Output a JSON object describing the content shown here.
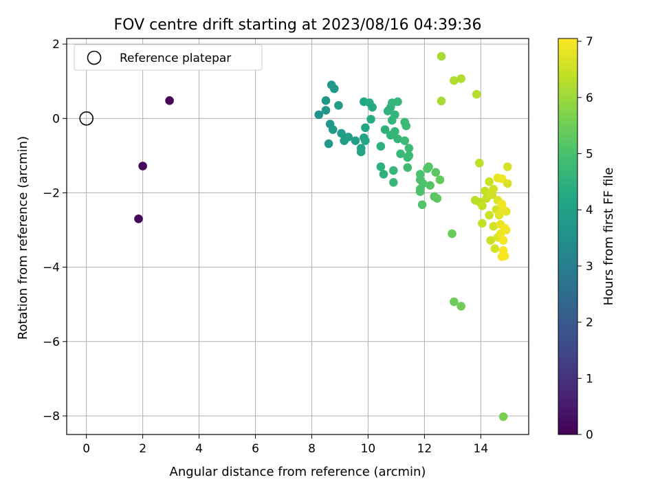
{
  "chart_data": {
    "type": "scatter",
    "title": "FOV centre drift starting at 2023/08/16 04:39:36",
    "xlabel": "Angular distance from reference (arcmin)",
    "ylabel": "Rotation from reference (arcmin)",
    "xlim": [
      -0.7,
      15.7
    ],
    "ylim": [
      -8.5,
      2.15
    ],
    "xticks": [
      0,
      2,
      4,
      6,
      8,
      10,
      12,
      14
    ],
    "yticks": [
      2,
      0,
      -2,
      -4,
      -6,
      -8
    ],
    "grid": true,
    "colormap": "viridis",
    "colorbar": {
      "label": "Hours from first FF file",
      "range": [
        0,
        7.05
      ],
      "ticks": [
        0,
        1,
        2,
        3,
        4,
        5,
        6,
        7
      ]
    },
    "legend": {
      "position": "top-left",
      "entries": [
        "Reference platepar"
      ]
    },
    "reference_point": {
      "x": 0,
      "y": 0,
      "label": "Reference platepar"
    },
    "points": [
      {
        "x": 2.95,
        "y": 0.48,
        "h": 0.1
      },
      {
        "x": 2.0,
        "y": -1.28,
        "h": 0.15
      },
      {
        "x": 1.85,
        "y": -2.7,
        "h": 0.12
      },
      {
        "x": 8.25,
        "y": 0.1,
        "h": 3.6
      },
      {
        "x": 8.5,
        "y": 0.48,
        "h": 3.7
      },
      {
        "x": 8.5,
        "y": 0.22,
        "h": 3.7
      },
      {
        "x": 8.6,
        "y": -0.68,
        "h": 3.75
      },
      {
        "x": 8.65,
        "y": -0.15,
        "h": 3.75
      },
      {
        "x": 8.75,
        "y": -0.3,
        "h": 3.8
      },
      {
        "x": 8.7,
        "y": 0.9,
        "h": 3.8
      },
      {
        "x": 8.8,
        "y": 0.8,
        "h": 3.8
      },
      {
        "x": 8.95,
        "y": 0.35,
        "h": 3.85
      },
      {
        "x": 9.05,
        "y": -0.4,
        "h": 3.9
      },
      {
        "x": 9.15,
        "y": -0.6,
        "h": 3.9
      },
      {
        "x": 9.3,
        "y": -0.5,
        "h": 3.95
      },
      {
        "x": 9.55,
        "y": -0.6,
        "h": 4.0
      },
      {
        "x": 9.75,
        "y": -0.8,
        "h": 4.1
      },
      {
        "x": 9.75,
        "y": -0.9,
        "h": 4.1
      },
      {
        "x": 9.85,
        "y": -0.52,
        "h": 4.15
      },
      {
        "x": 9.9,
        "y": -0.6,
        "h": 4.15
      },
      {
        "x": 9.85,
        "y": 0.45,
        "h": 4.2
      },
      {
        "x": 9.9,
        "y": -0.25,
        "h": 4.2
      },
      {
        "x": 10.05,
        "y": 0.42,
        "h": 4.3
      },
      {
        "x": 10.15,
        "y": 0.3,
        "h": 4.3
      },
      {
        "x": 10.1,
        "y": -0.02,
        "h": 4.35
      },
      {
        "x": 10.45,
        "y": -0.75,
        "h": 4.45
      },
      {
        "x": 10.45,
        "y": -1.3,
        "h": 4.5
      },
      {
        "x": 10.55,
        "y": -1.5,
        "h": 4.5
      },
      {
        "x": 10.6,
        "y": -0.3,
        "h": 4.5
      },
      {
        "x": 10.7,
        "y": 0.2,
        "h": 4.55
      },
      {
        "x": 10.8,
        "y": 0.3,
        "h": 4.55
      },
      {
        "x": 10.85,
        "y": 0.42,
        "h": 4.6
      },
      {
        "x": 10.85,
        "y": -0.05,
        "h": 4.6
      },
      {
        "x": 10.95,
        "y": 0.1,
        "h": 4.6
      },
      {
        "x": 10.8,
        "y": -0.45,
        "h": 4.6
      },
      {
        "x": 10.95,
        "y": -0.35,
        "h": 4.65
      },
      {
        "x": 11.05,
        "y": -0.55,
        "h": 4.65
      },
      {
        "x": 11.05,
        "y": 0.45,
        "h": 4.65
      },
      {
        "x": 10.9,
        "y": -1.4,
        "h": 4.65
      },
      {
        "x": 10.9,
        "y": -1.72,
        "h": 4.7
      },
      {
        "x": 11.15,
        "y": -0.95,
        "h": 4.7
      },
      {
        "x": 11.3,
        "y": -0.1,
        "h": 4.75
      },
      {
        "x": 11.35,
        "y": -0.2,
        "h": 4.75
      },
      {
        "x": 11.3,
        "y": -0.6,
        "h": 4.75
      },
      {
        "x": 11.45,
        "y": -0.8,
        "h": 4.8
      },
      {
        "x": 11.4,
        "y": -1.05,
        "h": 4.8
      },
      {
        "x": 11.45,
        "y": -1.0,
        "h": 4.8
      },
      {
        "x": 11.4,
        "y": -1.32,
        "h": 4.85
      },
      {
        "x": 11.85,
        "y": -1.5,
        "h": 5.0
      },
      {
        "x": 11.85,
        "y": -1.65,
        "h": 5.0
      },
      {
        "x": 11.85,
        "y": -1.9,
        "h": 5.05
      },
      {
        "x": 11.85,
        "y": -1.97,
        "h": 5.05
      },
      {
        "x": 11.95,
        "y": -1.75,
        "h": 5.05
      },
      {
        "x": 11.92,
        "y": -2.32,
        "h": 5.1
      },
      {
        "x": 12.1,
        "y": -1.35,
        "h": 5.1
      },
      {
        "x": 12.15,
        "y": -1.3,
        "h": 5.15
      },
      {
        "x": 12.2,
        "y": -1.8,
        "h": 5.15
      },
      {
        "x": 12.35,
        "y": -2.1,
        "h": 5.2
      },
      {
        "x": 12.4,
        "y": -1.45,
        "h": 5.25
      },
      {
        "x": 12.45,
        "y": -2.15,
        "h": 5.25
      },
      {
        "x": 12.55,
        "y": -1.65,
        "h": 5.35
      },
      {
        "x": 12.98,
        "y": -3.1,
        "h": 5.4
      },
      {
        "x": 13.05,
        "y": -4.93,
        "h": 5.45
      },
      {
        "x": 13.3,
        "y": -5.05,
        "h": 5.5
      },
      {
        "x": 14.8,
        "y": -8.02,
        "h": 5.6
      },
      {
        "x": 12.6,
        "y": 1.67,
        "h": 6.1
      },
      {
        "x": 12.6,
        "y": 0.47,
        "h": 6.1
      },
      {
        "x": 13.05,
        "y": 1.02,
        "h": 6.2
      },
      {
        "x": 13.3,
        "y": 1.07,
        "h": 6.2
      },
      {
        "x": 13.85,
        "y": 0.65,
        "h": 6.25
      },
      {
        "x": 13.8,
        "y": -2.2,
        "h": 6.3
      },
      {
        "x": 13.95,
        "y": -1.2,
        "h": 6.35
      },
      {
        "x": 13.95,
        "y": -2.25,
        "h": 6.35
      },
      {
        "x": 14.05,
        "y": -2.35,
        "h": 6.4
      },
      {
        "x": 14.05,
        "y": -2.82,
        "h": 6.4
      },
      {
        "x": 14.15,
        "y": -1.95,
        "h": 6.45
      },
      {
        "x": 14.2,
        "y": -2.15,
        "h": 6.45
      },
      {
        "x": 14.3,
        "y": -1.7,
        "h": 6.5
      },
      {
        "x": 14.3,
        "y": -2.6,
        "h": 6.5
      },
      {
        "x": 14.35,
        "y": -3.28,
        "h": 6.5
      },
      {
        "x": 14.4,
        "y": -2.05,
        "h": 6.55
      },
      {
        "x": 14.45,
        "y": -1.9,
        "h": 6.55
      },
      {
        "x": 14.45,
        "y": -2.9,
        "h": 6.55
      },
      {
        "x": 14.5,
        "y": -3.5,
        "h": 6.6
      },
      {
        "x": 14.55,
        "y": -2.45,
        "h": 6.6
      },
      {
        "x": 14.6,
        "y": -2.2,
        "h": 6.7
      },
      {
        "x": 14.6,
        "y": -3.2,
        "h": 6.7
      },
      {
        "x": 14.65,
        "y": -2.6,
        "h": 6.75
      },
      {
        "x": 14.6,
        "y": -1.6,
        "h": 6.8
      },
      {
        "x": 14.7,
        "y": -2.85,
        "h": 6.85
      },
      {
        "x": 14.7,
        "y": -3.1,
        "h": 6.85
      },
      {
        "x": 14.75,
        "y": -2.3,
        "h": 6.9
      },
      {
        "x": 14.75,
        "y": -1.62,
        "h": 6.9
      },
      {
        "x": 14.8,
        "y": -2.45,
        "h": 6.9
      },
      {
        "x": 14.8,
        "y": -3.28,
        "h": 6.95
      },
      {
        "x": 14.85,
        "y": -2.95,
        "h": 6.95
      },
      {
        "x": 14.8,
        "y": -3.55,
        "h": 7.0
      },
      {
        "x": 14.75,
        "y": -3.72,
        "h": 7.0
      },
      {
        "x": 14.85,
        "y": -3.7,
        "h": 7.0
      },
      {
        "x": 14.9,
        "y": -2.5,
        "h": 6.8
      },
      {
        "x": 14.9,
        "y": -3.0,
        "h": 6.9
      },
      {
        "x": 14.95,
        "y": -1.3,
        "h": 6.6
      },
      {
        "x": 14.95,
        "y": -1.75,
        "h": 6.65
      }
    ]
  }
}
